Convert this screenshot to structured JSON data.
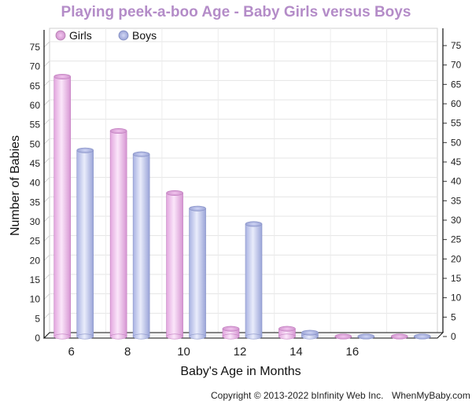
{
  "chart_data": {
    "type": "bar",
    "title": "Playing peek-a-boo Age - Baby Girls versus Boys",
    "xlabel": "Baby's Age in Months",
    "ylabel": "Number of Babies",
    "categories": [
      "6",
      "8",
      "10",
      "12",
      "14",
      "16",
      ""
    ],
    "series": [
      {
        "name": "Girls",
        "values": [
          67,
          53,
          37,
          2,
          2,
          0,
          0
        ]
      },
      {
        "name": "Boys",
        "values": [
          48,
          47,
          33,
          29,
          1,
          0,
          0
        ]
      }
    ],
    "ylim": [
      0,
      75
    ],
    "y_ticks": [
      0,
      5,
      10,
      15,
      20,
      25,
      30,
      35,
      40,
      45,
      50,
      55,
      60,
      65,
      70,
      75
    ],
    "right_y_ticks": [
      0,
      5,
      10,
      15,
      20,
      25,
      30,
      35,
      40,
      45,
      50,
      55,
      60,
      65,
      70,
      75
    ],
    "grid": true,
    "legend_position": "top-left",
    "colors": {
      "title": "#b48cc8",
      "girls": "#f2c6f0",
      "girls_edge": "#c27ec0",
      "boys": "#c8cef0",
      "boys_edge": "#8a94c8"
    }
  },
  "footer": {
    "copyright": "Copyright © 2013-2022 bInfinity Web Inc.",
    "site": "WhenMyBaby.com"
  }
}
